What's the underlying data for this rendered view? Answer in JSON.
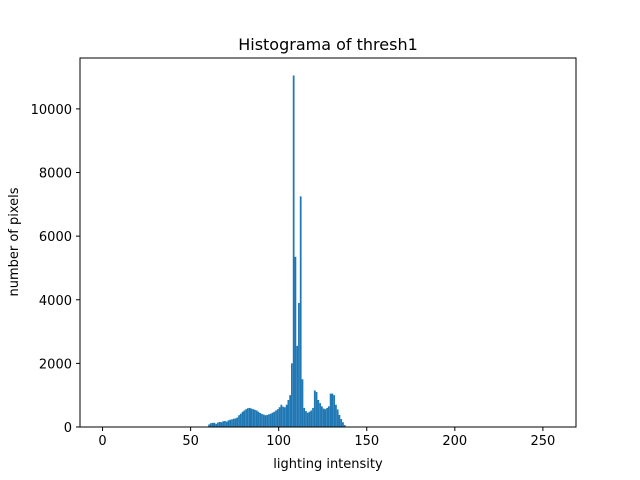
{
  "chart_data": {
    "type": "bar",
    "title": "Histograma  of thresh1",
    "xlabel": "lighting intensity",
    "ylabel": "number of pixels",
    "xlim": [
      -12.8,
      268.8
    ],
    "ylim": [
      0,
      11600
    ],
    "xticks": [
      0,
      50,
      100,
      150,
      200,
      250
    ],
    "yticks": [
      0,
      2000,
      4000,
      6000,
      8000,
      10000
    ],
    "bar_color": "#1f77b4",
    "grid": false,
    "bins": [
      {
        "x": 60,
        "value": 80
      },
      {
        "x": 61,
        "value": 120
      },
      {
        "x": 62,
        "value": 130
      },
      {
        "x": 63,
        "value": 130
      },
      {
        "x": 64,
        "value": 100
      },
      {
        "x": 65,
        "value": 140
      },
      {
        "x": 66,
        "value": 160
      },
      {
        "x": 67,
        "value": 150
      },
      {
        "x": 68,
        "value": 180
      },
      {
        "x": 69,
        "value": 190
      },
      {
        "x": 70,
        "value": 170
      },
      {
        "x": 71,
        "value": 210
      },
      {
        "x": 72,
        "value": 230
      },
      {
        "x": 73,
        "value": 240
      },
      {
        "x": 74,
        "value": 260
      },
      {
        "x": 75,
        "value": 270
      },
      {
        "x": 76,
        "value": 300
      },
      {
        "x": 77,
        "value": 370
      },
      {
        "x": 78,
        "value": 420
      },
      {
        "x": 79,
        "value": 480
      },
      {
        "x": 80,
        "value": 520
      },
      {
        "x": 81,
        "value": 560
      },
      {
        "x": 82,
        "value": 590
      },
      {
        "x": 83,
        "value": 600
      },
      {
        "x": 84,
        "value": 580
      },
      {
        "x": 85,
        "value": 560
      },
      {
        "x": 86,
        "value": 540
      },
      {
        "x": 87,
        "value": 520
      },
      {
        "x": 88,
        "value": 480
      },
      {
        "x": 89,
        "value": 440
      },
      {
        "x": 90,
        "value": 410
      },
      {
        "x": 91,
        "value": 390
      },
      {
        "x": 92,
        "value": 370
      },
      {
        "x": 93,
        "value": 380
      },
      {
        "x": 94,
        "value": 400
      },
      {
        "x": 95,
        "value": 420
      },
      {
        "x": 96,
        "value": 450
      },
      {
        "x": 97,
        "value": 480
      },
      {
        "x": 98,
        "value": 520
      },
      {
        "x": 99,
        "value": 560
      },
      {
        "x": 100,
        "value": 620
      },
      {
        "x": 101,
        "value": 700
      },
      {
        "x": 102,
        "value": 640
      },
      {
        "x": 103,
        "value": 620
      },
      {
        "x": 104,
        "value": 700
      },
      {
        "x": 105,
        "value": 850
      },
      {
        "x": 106,
        "value": 1000
      },
      {
        "x": 107,
        "value": 2000
      },
      {
        "x": 108,
        "value": 11050
      },
      {
        "x": 109,
        "value": 5350
      },
      {
        "x": 110,
        "value": 2550
      },
      {
        "x": 111,
        "value": 3900
      },
      {
        "x": 112,
        "value": 7250
      },
      {
        "x": 113,
        "value": 1500
      },
      {
        "x": 114,
        "value": 600
      },
      {
        "x": 115,
        "value": 500
      },
      {
        "x": 116,
        "value": 450
      },
      {
        "x": 117,
        "value": 480
      },
      {
        "x": 118,
        "value": 520
      },
      {
        "x": 119,
        "value": 600
      },
      {
        "x": 120,
        "value": 1150
      },
      {
        "x": 121,
        "value": 1100
      },
      {
        "x": 122,
        "value": 850
      },
      {
        "x": 123,
        "value": 750
      },
      {
        "x": 124,
        "value": 650
      },
      {
        "x": 125,
        "value": 580
      },
      {
        "x": 126,
        "value": 560
      },
      {
        "x": 127,
        "value": 600
      },
      {
        "x": 128,
        "value": 650
      },
      {
        "x": 129,
        "value": 1050
      },
      {
        "x": 130,
        "value": 1050
      },
      {
        "x": 131,
        "value": 1000
      },
      {
        "x": 132,
        "value": 700
      },
      {
        "x": 133,
        "value": 550
      },
      {
        "x": 134,
        "value": 380
      },
      {
        "x": 135,
        "value": 250
      },
      {
        "x": 136,
        "value": 150
      },
      {
        "x": 137,
        "value": 60
      }
    ]
  }
}
